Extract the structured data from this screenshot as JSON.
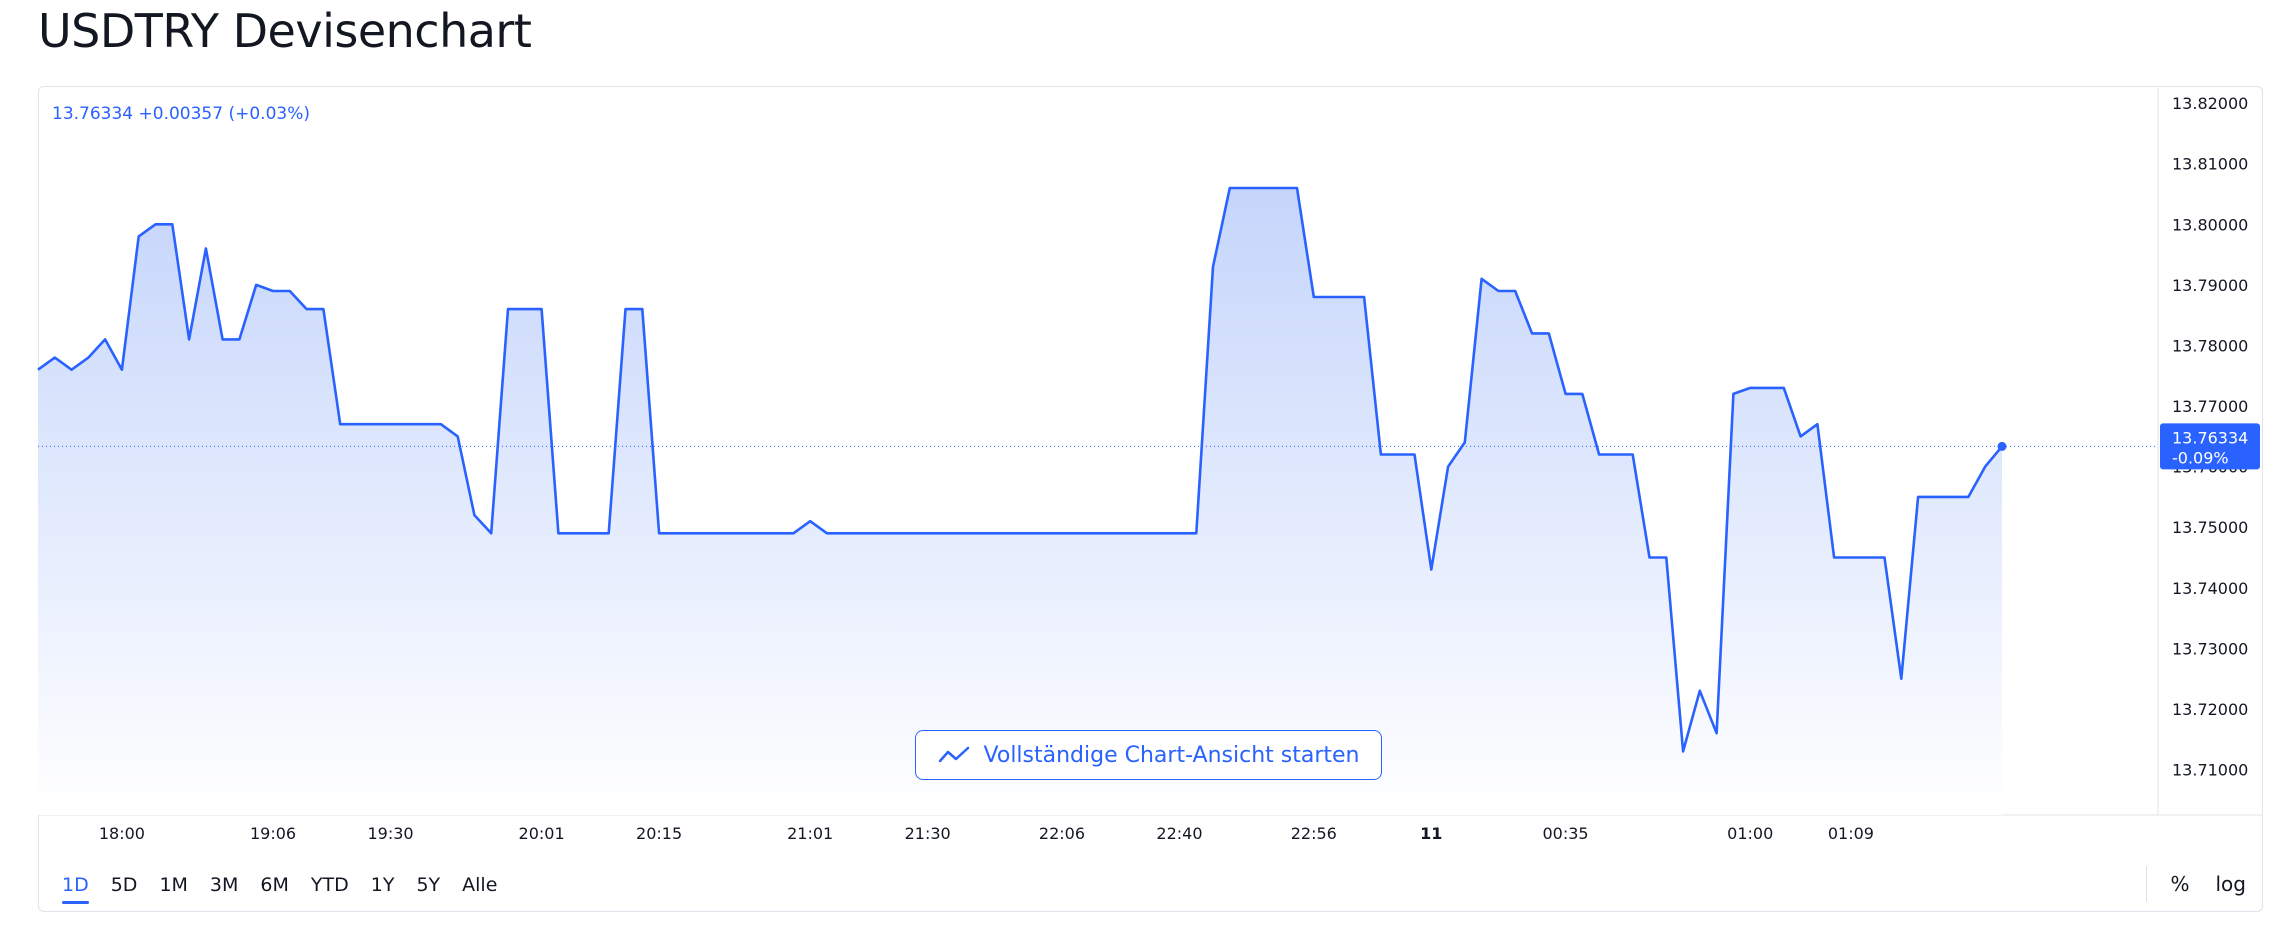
{
  "page": {
    "title": "USDTRY Devisenchart"
  },
  "legend": {
    "text": "13.76334 +0.00357 (+0.03%)"
  },
  "cta": {
    "label": "Vollständige Chart-Ansicht starten",
    "icon": "chart-line-icon"
  },
  "last_price_label": {
    "price": "13.76334",
    "change": "-0.09%"
  },
  "range_buttons": [
    "1D",
    "5D",
    "1M",
    "3M",
    "6M",
    "YTD",
    "1Y",
    "5Y",
    "Alle"
  ],
  "active_range": "1D",
  "right_controls": {
    "percent": "%",
    "log": "log"
  },
  "colors": {
    "line": "#2962ff",
    "fill_top": "#c5d5fb",
    "fill_bottom": "#ffffff",
    "text": "#131722",
    "grid": "#e0e3eb"
  },
  "chart_data": {
    "type": "area",
    "y_ticks": [
      "13.82000",
      "13.81000",
      "13.80000",
      "13.79000",
      "13.78000",
      "13.77000",
      "13.76000",
      "13.75000",
      "13.74000",
      "13.73000",
      "13.72000",
      "13.71000"
    ],
    "y_tick_values": [
      13.82,
      13.81,
      13.8,
      13.79,
      13.78,
      13.77,
      13.76,
      13.75,
      13.74,
      13.73,
      13.72,
      13.71
    ],
    "ylim": [
      13.7025,
      13.8225
    ],
    "x_tick_labels": [
      "18:00",
      "19:06",
      "19:30",
      "20:01",
      "20:15",
      "21:01",
      "21:30",
      "22:06",
      "22:40",
      "22:56",
      "11",
      "00:35",
      "01:00",
      "01:09"
    ],
    "x_tick_index": [
      5,
      14,
      21,
      30,
      37,
      46,
      53,
      61,
      68,
      76,
      83,
      91,
      102,
      108
    ],
    "bold_tick": "11",
    "last_value": 13.76334,
    "values": [
      13.776,
      13.778,
      13.776,
      13.778,
      13.781,
      13.776,
      13.798,
      13.8,
      13.8,
      13.781,
      13.796,
      13.781,
      13.781,
      13.79,
      13.789,
      13.789,
      13.786,
      13.786,
      13.767,
      13.767,
      13.767,
      13.767,
      13.767,
      13.767,
      13.767,
      13.765,
      13.752,
      13.749,
      13.786,
      13.786,
      13.786,
      13.749,
      13.749,
      13.749,
      13.749,
      13.786,
      13.786,
      13.749,
      13.749,
      13.749,
      13.749,
      13.749,
      13.749,
      13.749,
      13.749,
      13.749,
      13.751,
      13.749,
      13.749,
      13.749,
      13.749,
      13.749,
      13.749,
      13.749,
      13.749,
      13.749,
      13.749,
      13.749,
      13.749,
      13.749,
      13.749,
      13.749,
      13.749,
      13.749,
      13.749,
      13.749,
      13.749,
      13.749,
      13.749,
      13.749,
      13.793,
      13.806,
      13.806,
      13.806,
      13.806,
      13.806,
      13.788,
      13.788,
      13.788,
      13.788,
      13.762,
      13.762,
      13.762,
      13.743,
      13.76,
      13.764,
      13.791,
      13.789,
      13.789,
      13.782,
      13.782,
      13.772,
      13.772,
      13.762,
      13.762,
      13.762,
      13.745,
      13.745,
      13.713,
      13.723,
      13.716,
      13.772,
      13.773,
      13.773,
      13.773,
      13.765,
      13.767,
      13.745,
      13.745,
      13.745,
      13.745,
      13.725,
      13.755,
      13.755,
      13.755,
      13.755,
      13.76,
      13.76334
    ]
  }
}
